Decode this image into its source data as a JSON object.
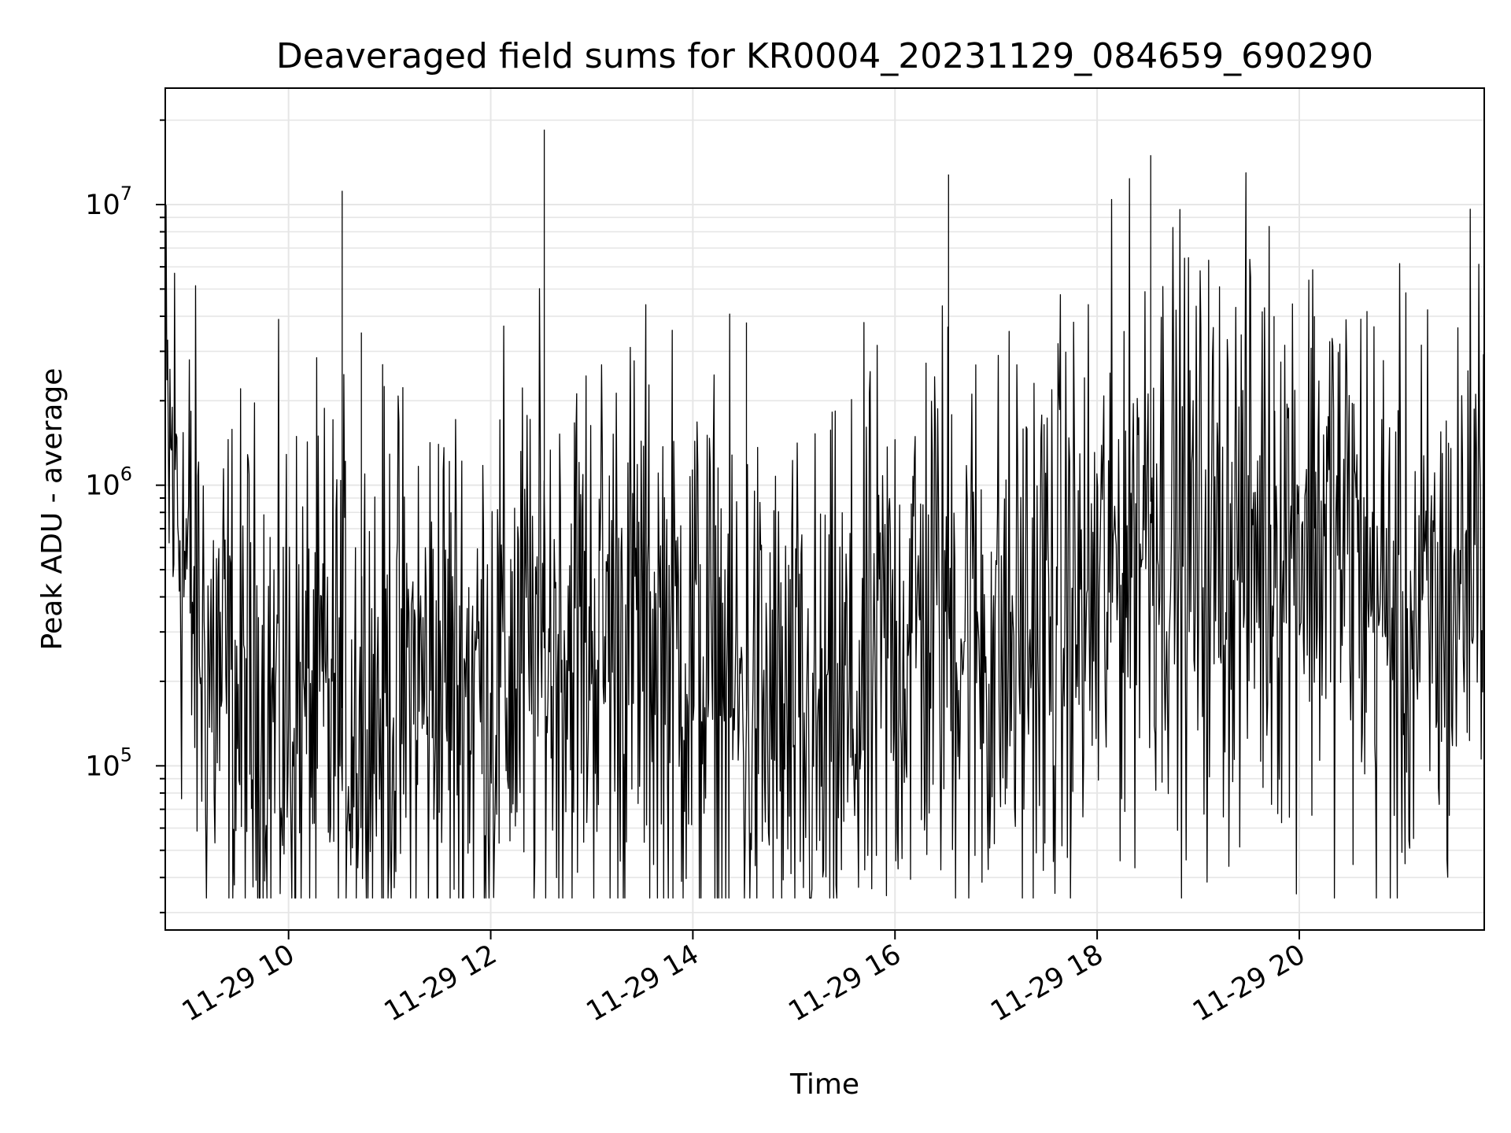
{
  "chart_data": {
    "type": "line",
    "title": "Deaveraged field sums for KR0004_20231129_084659_690290",
    "xlabel": "Time",
    "ylabel": "Peak ADU - average",
    "yscale": "log",
    "grid": true,
    "line_color": "#000000",
    "grid_color": "#e6e6e6",
    "xlim_hours": [
      8.78,
      21.83
    ],
    "ylim": [
      26000,
      26000000
    ],
    "x_tick_labels": [
      "11-29 10",
      "11-29 12",
      "11-29 14",
      "11-29 16",
      "11-29 18",
      "11-29 20"
    ],
    "x_tick_hours": [
      10,
      12,
      14,
      16,
      18,
      20
    ],
    "y_tick_labels": [
      {
        "base": "10",
        "exp": "5",
        "value": 100000
      },
      {
        "base": "10",
        "exp": "6",
        "value": 1000000
      },
      {
        "base": "10",
        "exp": "7",
        "value": 10000000
      }
    ],
    "baseline_profile": [
      [
        8.78,
        1300000
      ],
      [
        8.9,
        1000000
      ],
      [
        9.0,
        450000
      ],
      [
        9.2,
        230000
      ],
      [
        9.5,
        160000
      ],
      [
        10.0,
        150000
      ],
      [
        10.5,
        160000
      ],
      [
        11.0,
        170000
      ],
      [
        11.5,
        210000
      ],
      [
        12.0,
        200000
      ],
      [
        12.5,
        260000
      ],
      [
        13.0,
        300000
      ],
      [
        13.5,
        300000
      ],
      [
        14.0,
        240000
      ],
      [
        14.5,
        160000
      ],
      [
        15.0,
        120000
      ],
      [
        15.3,
        110000
      ],
      [
        15.6,
        160000
      ],
      [
        16.0,
        280000
      ],
      [
        16.5,
        380000
      ],
      [
        17.0,
        250000
      ],
      [
        17.5,
        320000
      ],
      [
        18.0,
        380000
      ],
      [
        18.5,
        900000
      ],
      [
        19.0,
        550000
      ],
      [
        19.5,
        650000
      ],
      [
        20.0,
        750000
      ],
      [
        20.5,
        600000
      ],
      [
        21.0,
        300000
      ],
      [
        21.5,
        350000
      ],
      [
        21.83,
        1100000
      ]
    ],
    "spikes": [
      {
        "x": 10.53,
        "y": 11200000
      },
      {
        "x": 10.72,
        "y": 3500000
      },
      {
        "x": 12.53,
        "y": 18500000
      },
      {
        "x": 14.53,
        "y": 3800000
      },
      {
        "x": 16.53,
        "y": 12800000
      },
      {
        "x": 18.53,
        "y": 15000000
      },
      {
        "x": 19.75,
        "y": 4000000
      },
      {
        "x": 20.15,
        "y": 4000000
      }
    ]
  }
}
